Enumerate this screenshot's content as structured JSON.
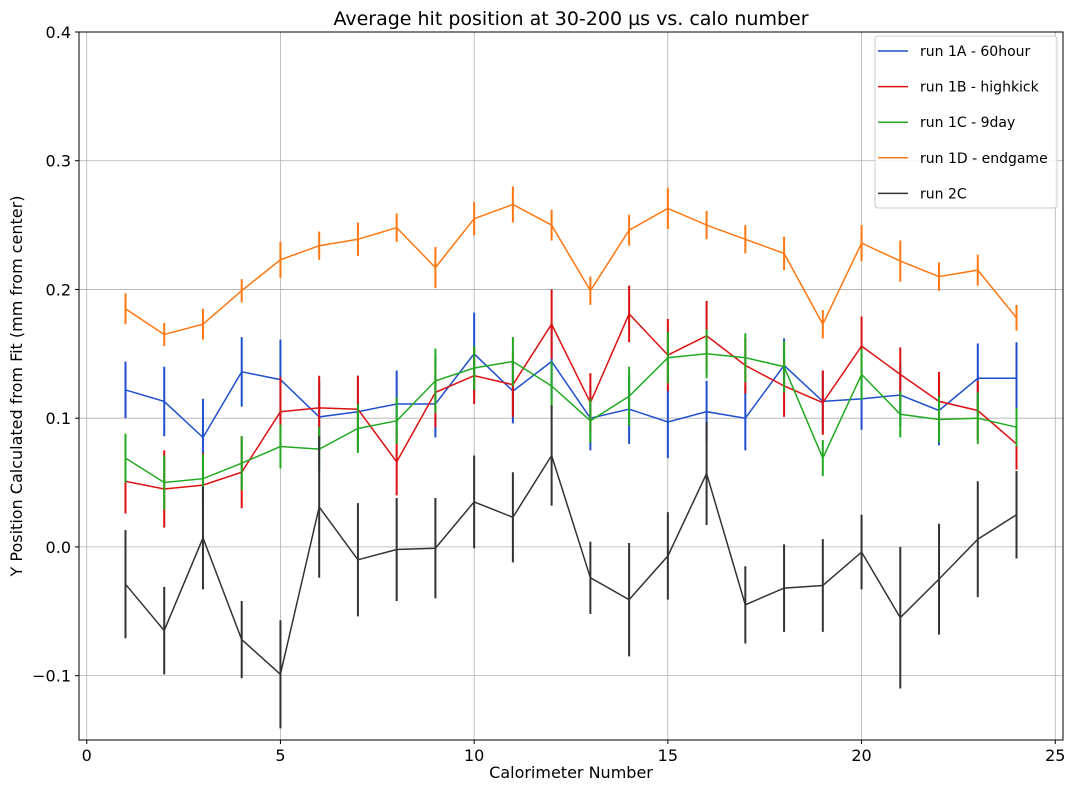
{
  "chart_data": {
    "type": "line",
    "title": "Average hit position at 30-200 µs vs. calo number",
    "xlabel": "Calorimeter Number",
    "ylabel": "Y Position Calculated from Fit (mm from center)",
    "xlim": [
      -0.2,
      25.2
    ],
    "ylim": [
      -0.15,
      0.4
    ],
    "xticks": [
      0,
      5,
      10,
      15,
      20,
      25
    ],
    "yticks": [
      -0.1,
      0.0,
      0.1,
      0.2,
      0.3,
      0.4
    ],
    "ytick_labels": [
      "−0.1",
      "0.0",
      "0.1",
      "0.2",
      "0.3",
      "0.4"
    ],
    "grid": true,
    "legend_position": "top-right",
    "x": [
      1,
      2,
      3,
      4,
      5,
      6,
      7,
      8,
      9,
      10,
      11,
      12,
      13,
      14,
      15,
      16,
      17,
      18,
      19,
      20,
      21,
      22,
      23,
      24
    ],
    "series": [
      {
        "name": "run 1A - 60hour",
        "color": "#1f4fcc",
        "values": [
          0.122,
          0.113,
          0.085,
          0.136,
          0.13,
          0.101,
          0.105,
          0.111,
          0.111,
          0.15,
          0.121,
          0.144,
          0.1,
          0.107,
          0.097,
          0.105,
          0.1,
          0.141,
          0.113,
          0.115,
          0.118,
          0.106,
          0.131,
          0.131
        ],
        "errors": [
          0.022,
          0.027,
          0.03,
          0.027,
          0.031,
          0.027,
          0.028,
          0.026,
          0.026,
          0.032,
          0.025,
          0.03,
          0.025,
          0.027,
          0.028,
          0.024,
          0.025,
          0.021,
          0.024,
          0.024,
          0.024,
          0.027,
          0.027,
          0.028
        ]
      },
      {
        "name": "run 1B - highkick",
        "color": "#dd1111",
        "values": [
          0.051,
          0.045,
          0.048,
          0.058,
          0.105,
          0.108,
          0.107,
          0.066,
          0.12,
          0.133,
          0.126,
          0.173,
          0.112,
          0.181,
          0.149,
          0.164,
          0.141,
          0.125,
          0.112,
          0.156,
          0.134,
          0.113,
          0.106,
          0.08
        ],
        "errors": [
          0.025,
          0.03,
          0.025,
          0.028,
          0.027,
          0.025,
          0.026,
          0.026,
          0.027,
          0.022,
          0.025,
          0.027,
          0.023,
          0.022,
          0.028,
          0.027,
          0.022,
          0.024,
          0.025,
          0.023,
          0.021,
          0.023,
          0.023,
          0.02
        ]
      },
      {
        "name": "run 1C - 9day",
        "color": "#22aa22",
        "values": [
          0.069,
          0.05,
          0.053,
          0.065,
          0.078,
          0.076,
          0.092,
          0.098,
          0.129,
          0.139,
          0.144,
          0.125,
          0.098,
          0.117,
          0.147,
          0.15,
          0.147,
          0.14,
          0.069,
          0.134,
          0.103,
          0.099,
          0.1,
          0.093
        ],
        "errors": [
          0.019,
          0.021,
          0.019,
          0.021,
          0.017,
          0.017,
          0.019,
          0.018,
          0.025,
          0.017,
          0.019,
          0.019,
          0.017,
          0.023,
          0.02,
          0.019,
          0.019,
          0.02,
          0.014,
          0.02,
          0.018,
          0.018,
          0.02,
          0.015
        ]
      },
      {
        "name": "run 1D - endgame",
        "color": "#ff7711",
        "values": [
          0.185,
          0.165,
          0.173,
          0.199,
          0.223,
          0.234,
          0.239,
          0.248,
          0.217,
          0.255,
          0.266,
          0.25,
          0.199,
          0.246,
          0.263,
          0.25,
          0.239,
          0.228,
          0.173,
          0.236,
          0.222,
          0.21,
          0.215,
          0.178
        ],
        "errors": [
          0.012,
          0.009,
          0.012,
          0.009,
          0.014,
          0.011,
          0.013,
          0.011,
          0.016,
          0.013,
          0.014,
          0.012,
          0.011,
          0.012,
          0.016,
          0.011,
          0.011,
          0.013,
          0.011,
          0.014,
          0.016,
          0.011,
          0.012,
          0.01
        ]
      },
      {
        "name": "run 2C",
        "color": "#333333",
        "values": [
          -0.029,
          -0.065,
          0.007,
          -0.072,
          -0.099,
          0.031,
          -0.01,
          -0.002,
          -0.001,
          0.035,
          0.023,
          0.071,
          -0.024,
          -0.041,
          -0.007,
          0.057,
          -0.045,
          -0.032,
          -0.03,
          -0.004,
          -0.055,
          -0.025,
          0.006,
          0.025
        ],
        "errors": [
          0.042,
          0.034,
          0.04,
          0.03,
          0.042,
          0.055,
          0.044,
          0.04,
          0.039,
          0.036,
          0.035,
          0.039,
          0.028,
          0.044,
          0.034,
          0.04,
          0.03,
          0.034,
          0.036,
          0.029,
          0.055,
          0.043,
          0.045,
          0.034
        ]
      }
    ]
  }
}
